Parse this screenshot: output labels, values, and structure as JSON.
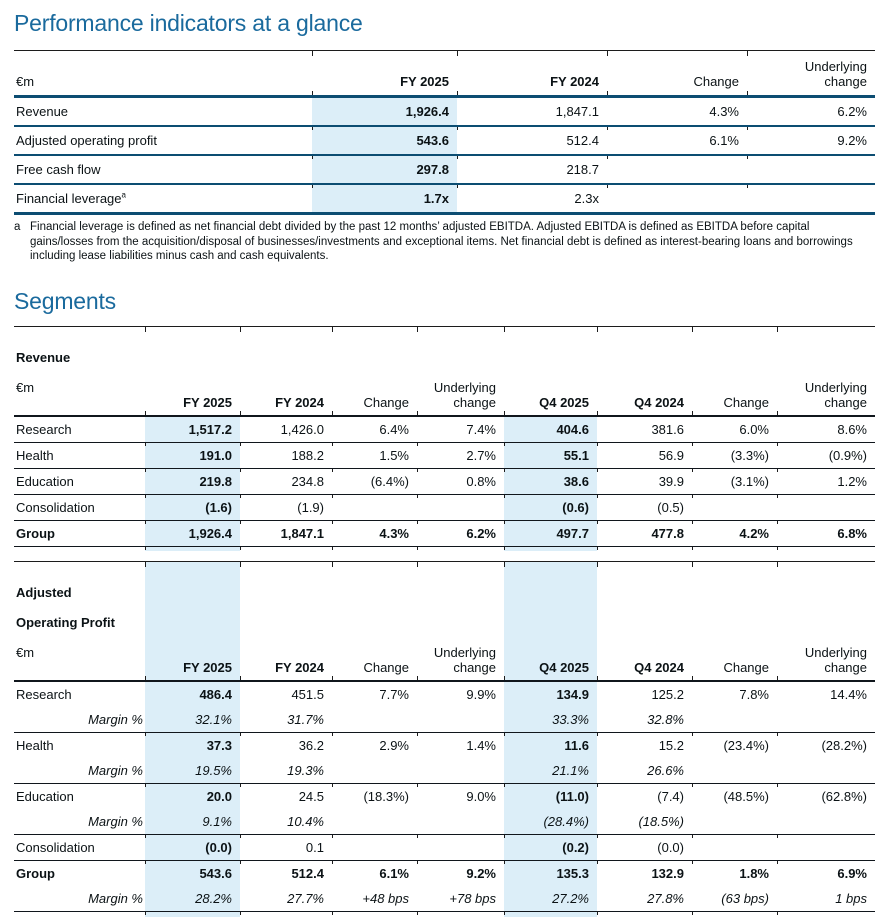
{
  "page": {
    "title_performance": "Performance indicators at a glance",
    "title_segments": "Segments"
  },
  "colors": {
    "heading_blue": "#1A6A9D",
    "highlight_blue": "#DCEEF8",
    "rule_teal": "#0C4D72",
    "segment_rule": "#10161C",
    "text": "#0B1215"
  },
  "performance_table": {
    "header": {
      "unit": "€m",
      "cols": [
        "FY 2025",
        "FY 2024",
        "Change",
        "Underlying\nchange"
      ]
    },
    "rows": [
      {
        "label": "Revenue",
        "cells": [
          "1,926.4",
          "1,847.1",
          "4.3%",
          "6.2%"
        ]
      },
      {
        "label": "Adjusted operating profit",
        "cells": [
          "543.6",
          "512.4",
          "6.1%",
          "9.2%"
        ]
      },
      {
        "label": "Free cash flow",
        "cells": [
          "297.8",
          "218.7",
          "",
          ""
        ]
      },
      {
        "label": "Financial leverage",
        "sup": "a",
        "cells": [
          "1.7x",
          "2.3x",
          "",
          ""
        ]
      }
    ],
    "footnote": {
      "marker": "a",
      "text": "Financial leverage is defined as net financial debt divided by the past 12 months’ adjusted EBITDA. Adjusted EBITDA is defined as EBITDA before capital gains/losses from the acquisition/disposal of businesses/investments and exceptional items. Net financial debt is defined as interest-bearing loans and borrowings including lease liabilities minus cash and cash equivalents."
    }
  },
  "revenue_table": {
    "title": "Revenue",
    "unit": "€m",
    "cols": [
      "FY 2025",
      "FY 2024",
      "Change",
      "Underlying\nchange",
      "Q4 2025",
      "Q4 2024",
      "Change",
      "Underlying\nchange"
    ],
    "rows": [
      {
        "label": "Research",
        "cells": [
          "1,517.2",
          "1,426.0",
          "6.4%",
          "7.4%",
          "404.6",
          "381.6",
          "6.0%",
          "8.6%"
        ]
      },
      {
        "label": "Health",
        "cells": [
          "191.0",
          "188.2",
          "1.5%",
          "2.7%",
          "55.1",
          "56.9",
          "(3.3%)",
          "(0.9%)"
        ]
      },
      {
        "label": "Education",
        "cells": [
          "219.8",
          "234.8",
          "(6.4%)",
          "0.8%",
          "38.6",
          "39.9",
          "(3.1%)",
          "1.2%"
        ]
      },
      {
        "label": "Consolidation",
        "cells": [
          "(1.6)",
          "(1.9)",
          "",
          "",
          "(0.6)",
          "(0.5)",
          "",
          ""
        ]
      },
      {
        "label": "Group",
        "bold": true,
        "cells": [
          "1,926.4",
          "1,847.1",
          "4.3%",
          "6.2%",
          "497.7",
          "477.8",
          "4.2%",
          "6.8%"
        ]
      }
    ]
  },
  "aop_table": {
    "title_lines": [
      "Adjusted",
      "Operating Profit"
    ],
    "unit": "€m",
    "cols": [
      "FY 2025",
      "FY 2024",
      "Change",
      "Underlying\nchange",
      "Q4 2025",
      "Q4 2024",
      "Change",
      "Underlying\nchange"
    ],
    "rows": [
      {
        "label": "Research",
        "cells": [
          "486.4",
          "451.5",
          "7.7%",
          "9.9%",
          "134.9",
          "125.2",
          "7.8%",
          "14.4%"
        ]
      },
      {
        "label": "Margin %",
        "type": "margin",
        "cells": [
          "32.1%",
          "31.7%",
          "",
          "",
          "33.3%",
          "32.8%",
          "",
          ""
        ]
      },
      {
        "label": "Health",
        "cells": [
          "37.3",
          "36.2",
          "2.9%",
          "1.4%",
          "11.6",
          "15.2",
          "(23.4%)",
          "(28.2%)"
        ]
      },
      {
        "label": "Margin %",
        "type": "margin",
        "cells": [
          "19.5%",
          "19.3%",
          "",
          "",
          "21.1%",
          "26.6%",
          "",
          ""
        ]
      },
      {
        "label": "Education",
        "cells": [
          "20.0",
          "24.5",
          "(18.3%)",
          "9.0%",
          "(11.0)",
          "(7.4)",
          "(48.5%)",
          "(62.8%)"
        ]
      },
      {
        "label": "Margin %",
        "type": "margin",
        "cells": [
          "9.1%",
          "10.4%",
          "",
          "",
          "(28.4%)",
          "(18.5%)",
          "",
          ""
        ]
      },
      {
        "label": "Consolidation",
        "cells": [
          "(0.0)",
          "0.1",
          "",
          "",
          "(0.2)",
          "(0.0)",
          "",
          ""
        ]
      },
      {
        "label": "Group",
        "bold": true,
        "cells": [
          "543.6",
          "512.4",
          "6.1%",
          "9.2%",
          "135.3",
          "132.9",
          "1.8%",
          "6.9%"
        ]
      },
      {
        "label": "Margin %",
        "type": "margin",
        "cells": [
          "28.2%",
          "27.7%",
          "+48 bps",
          "+78 bps",
          "27.2%",
          "27.8%",
          "(63 bps)",
          "1 bps"
        ]
      }
    ]
  }
}
